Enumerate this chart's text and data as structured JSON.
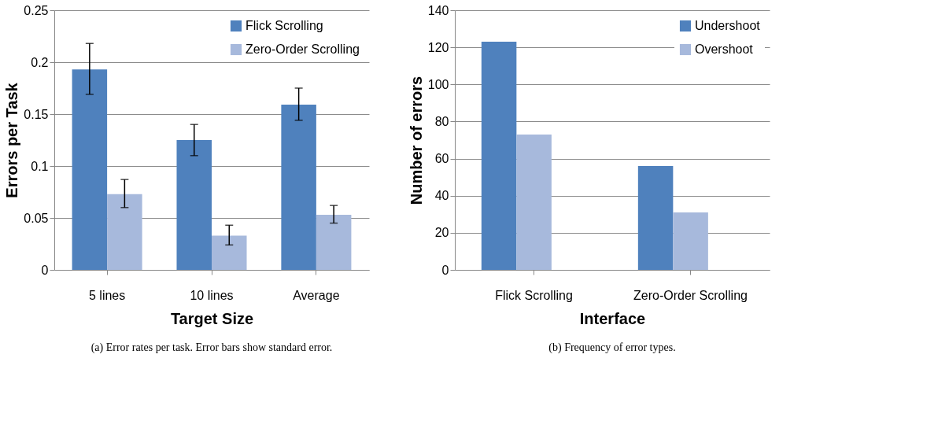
{
  "chart_data": [
    {
      "type": "bar",
      "xlabel": "Target Size",
      "ylabel": "Errors per Task",
      "categories": [
        "5 lines",
        "10 lines",
        "Average"
      ],
      "ylim": [
        0,
        0.25
      ],
      "yticks": [
        0,
        0.05,
        0.1,
        0.15,
        0.2,
        0.25
      ],
      "grid": "y",
      "legend": "top right",
      "series": [
        {
          "name": "Flick Scrolling",
          "color": "#4f81bd",
          "values": [
            0.193,
            0.125,
            0.159
          ],
          "errors": [
            [
              0.169,
              0.218
            ],
            [
              0.11,
              0.14
            ],
            [
              0.144,
              0.175
            ]
          ]
        },
        {
          "name": "Zero-Order Scrolling",
          "color": "#a7b9dc",
          "values": [
            0.073,
            0.033,
            0.053
          ],
          "errors": [
            [
              0.06,
              0.087
            ],
            [
              0.024,
              0.043
            ],
            [
              0.045,
              0.062
            ]
          ]
        }
      ],
      "annotations": [
        "(a) Error rates per task. Error bars show standard error."
      ]
    },
    {
      "type": "bar",
      "xlabel": "Interface",
      "ylabel": "Number of errors",
      "categories": [
        "Flick Scrolling",
        "Zero-Order Scrolling"
      ],
      "ylim": [
        0,
        140
      ],
      "yticks": [
        0,
        20,
        40,
        60,
        80,
        100,
        120,
        140
      ],
      "grid": "y",
      "legend": "top right",
      "series": [
        {
          "name": "Undershoot",
          "color": "#4f81bd",
          "values": [
            123,
            56
          ]
        },
        {
          "name": "Overshoot",
          "color": "#a7b9dc",
          "values": [
            73,
            31
          ]
        }
      ],
      "annotations": [
        "(b) Frequency of error types."
      ]
    }
  ]
}
